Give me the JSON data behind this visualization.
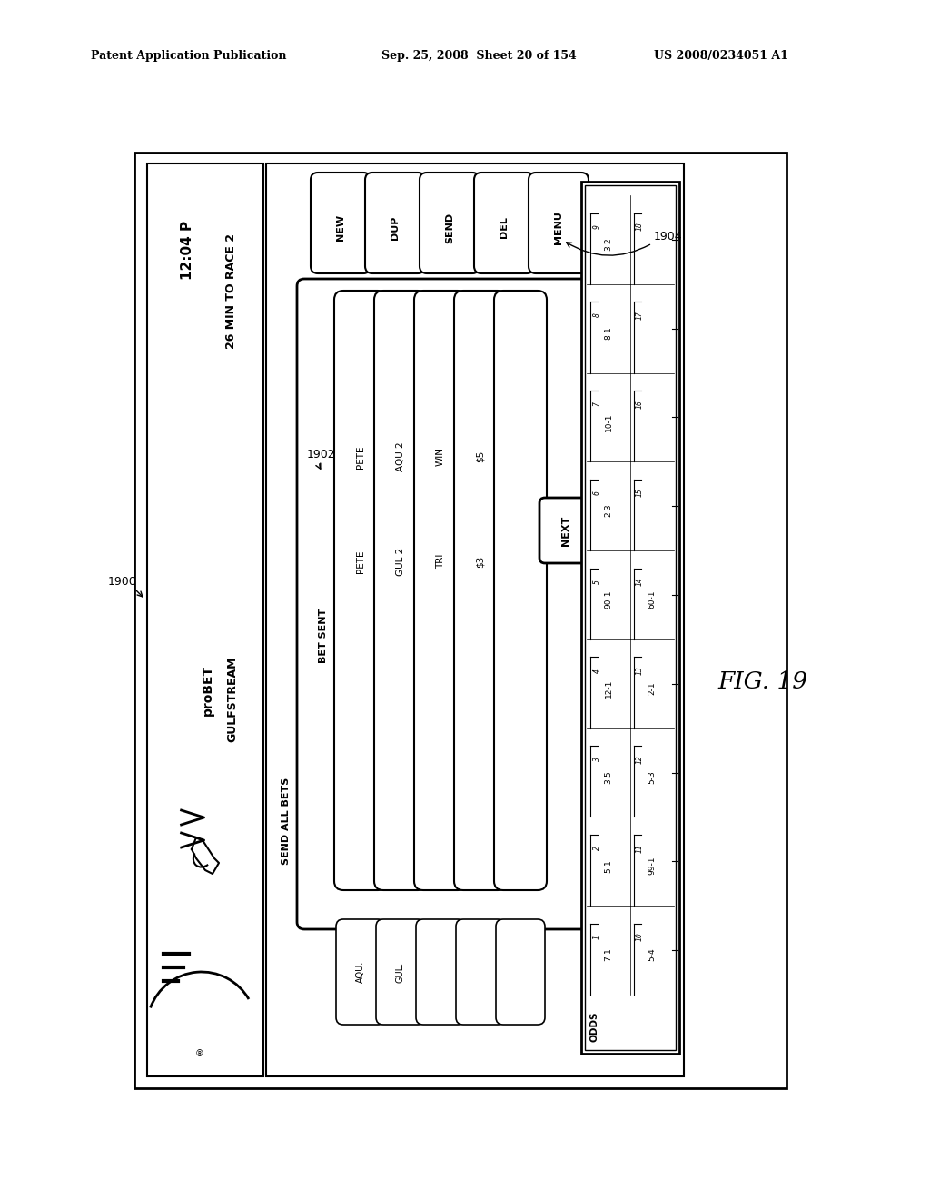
{
  "bg_color": "#ffffff",
  "header_text1": "Patent Application Publication",
  "header_text2": "Sep. 25, 2008  Sheet 20 of 154",
  "header_text3": "US 2008/0234051 A1",
  "fig_label": "FIG. 19",
  "label_1900": "1900",
  "label_1902": "1902",
  "label_1904": "1904",
  "title_probet": "proBET",
  "title_gulfstream": "GULFSTREAM",
  "time_text": "12:04 P",
  "race_text": "26 MIN TO RACE 2",
  "send_all_bets": "SEND ALL BETS",
  "bet_sent": "BET SENT",
  "buttons_top": [
    "NEW",
    "DUP",
    "SEND",
    "DEL",
    "MENU"
  ],
  "row1_track": "PETE",
  "row1_race": "AQU 2",
  "row1_type": "WIN",
  "row1_amt": "$5",
  "row2_track": "PETE",
  "row2_race": "GUL 2",
  "row2_type": "TRI",
  "row2_amt": "$3",
  "bot_track1": "AQU.",
  "bot_track2": "GUL.",
  "next_label": "NEXT",
  "odds_header": "ODDS",
  "odds_rows": [
    [
      "1",
      "7-1",
      "10",
      "5-4"
    ],
    [
      "2",
      "5-1",
      "11",
      "99-1"
    ],
    [
      "3",
      "3-5",
      "12",
      "5-3"
    ],
    [
      "4",
      "12-1",
      "13",
      "2-1"
    ],
    [
      "5",
      "90-1",
      "14",
      "60-1"
    ],
    [
      "6",
      "2-3",
      "15",
      ""
    ],
    [
      "7",
      "10-1",
      "16",
      ""
    ],
    [
      "8",
      "8-1",
      "17",
      ""
    ],
    [
      "9",
      "3-2",
      "18",
      ""
    ]
  ]
}
